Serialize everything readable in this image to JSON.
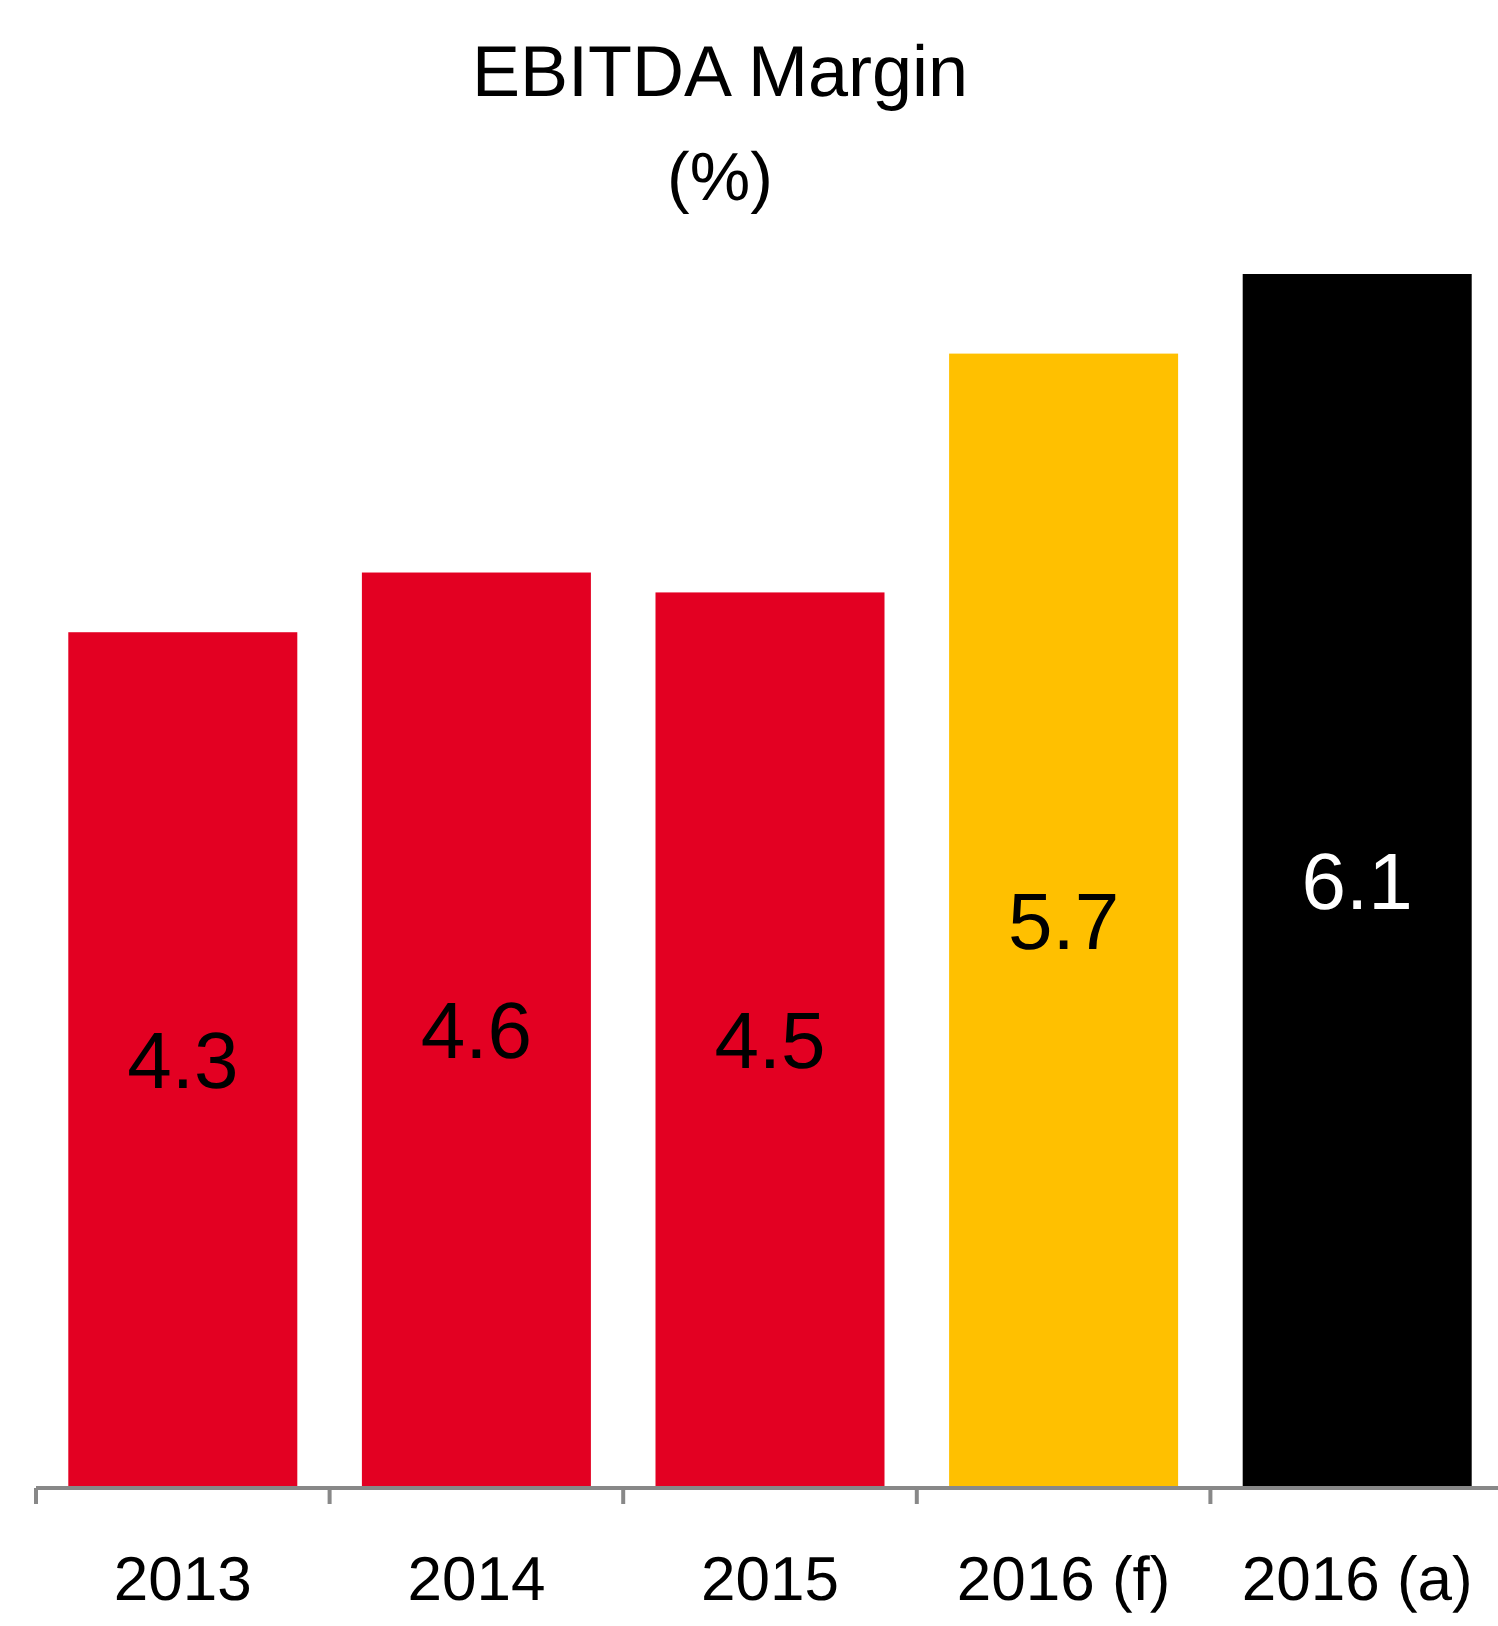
{
  "chart_data": {
    "type": "bar",
    "title": "EBITDA Margin",
    "subtitle": "(%)",
    "categories": [
      "2013",
      "2014",
      "2015",
      "2016 (f)",
      "2016 (a)"
    ],
    "values": [
      4.3,
      4.6,
      4.5,
      5.7,
      6.1
    ],
    "colors": [
      "#e30022",
      "#e30022",
      "#e30022",
      "#ffc000",
      "#000000"
    ],
    "data_labels": true
  }
}
